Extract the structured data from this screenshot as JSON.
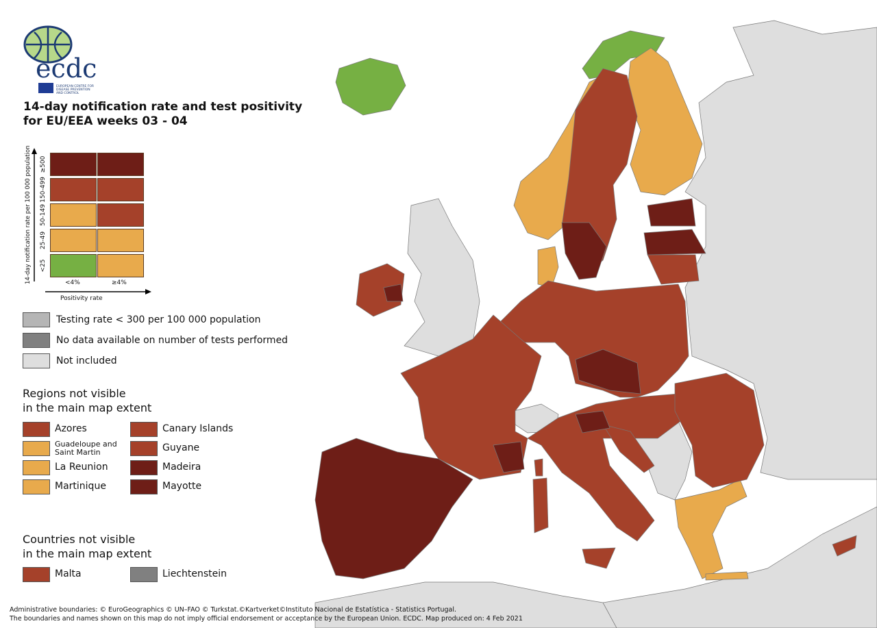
{
  "logo": {
    "text": "ecdc",
    "subtitle": "EUROPEAN CENTRE FOR DISEASE PREVENTION AND CONTROL"
  },
  "title": {
    "line1": "14-day notification rate and test positivity",
    "line2": "for EU/EEA weeks 03 - 04"
  },
  "colors": {
    "very_high": "#6e1e17",
    "high": "#a5412a",
    "medium": "#e8aa4c",
    "low": "#76b043",
    "testing_low": "#b5b5b5",
    "no_data": "#808080",
    "not_included": "#dedede"
  },
  "matrix": {
    "y_axis_label": "14-day notification rate per 100 000 population",
    "x_axis_label": "Positivity rate",
    "rows": [
      "≥500",
      "150-499",
      "50-149",
      "25-49",
      "<25"
    ],
    "cols": [
      "<4%",
      "≥4%"
    ],
    "cells": [
      [
        "very_high",
        "very_high"
      ],
      [
        "high",
        "high"
      ],
      [
        "medium",
        "high"
      ],
      [
        "medium",
        "medium"
      ],
      [
        "low",
        "medium"
      ]
    ]
  },
  "grey_legend": [
    {
      "label": "Testing rate < 300 per 100 000 population",
      "color": "testing_low"
    },
    {
      "label": "No data available on number of tests performed",
      "color": "no_data"
    },
    {
      "label": "Not included",
      "color": "not_included"
    }
  ],
  "regions": {
    "heading1": "Regions not visible",
    "heading2": "in the main map extent",
    "items": [
      {
        "label": "Azores",
        "color": "high"
      },
      {
        "label": "Canary Islands",
        "color": "high"
      },
      {
        "label": "Guadeloupe and Saint Martin",
        "color": "medium"
      },
      {
        "label": "Guyane",
        "color": "high"
      },
      {
        "label": "La Reunion",
        "color": "medium"
      },
      {
        "label": "Madeira",
        "color": "very_high"
      },
      {
        "label": "Martinique",
        "color": "medium"
      },
      {
        "label": "Mayotte",
        "color": "very_high"
      }
    ]
  },
  "countries": {
    "heading1": "Countries not visible",
    "heading2": "in the main map extent",
    "items": [
      {
        "label": "Malta",
        "color": "high"
      },
      {
        "label": "Liechtenstein",
        "color": "no_data"
      }
    ]
  },
  "footer": {
    "line1": "Administrative boundaries: © EuroGeographics © UN–FAO © Turkstat.©Kartverket©Instituto Nacional de Estatística - Statistics Portugal.",
    "line2": "The boundaries and names shown on this map do not imply official endorsement or acceptance by the European Union. ECDC. Map produced on: 4 Feb 2021"
  }
}
